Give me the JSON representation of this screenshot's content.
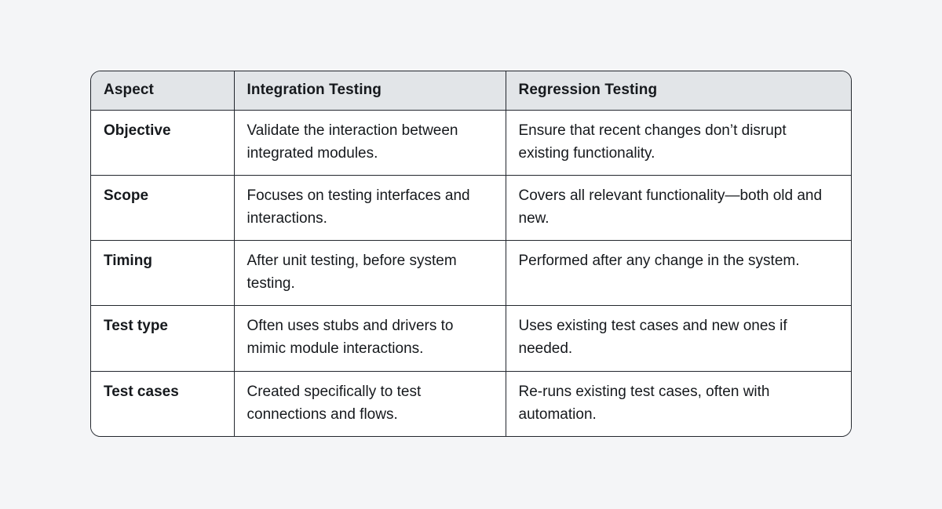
{
  "page": {
    "background_color": "#f4f5f7",
    "text_color": "#16191d"
  },
  "table": {
    "header_bg": "#e2e5e8",
    "body_bg": "#ffffff",
    "border_color": "#23272e",
    "columns": {
      "aspect": "Aspect",
      "integration": "Integration Testing",
      "regression": "Regression Testing"
    },
    "rows": [
      {
        "aspect": "Objective",
        "integration": "Validate the interaction between integrated modules.",
        "regression": "Ensure that recent changes don’t disrupt existing functionality."
      },
      {
        "aspect": "Scope",
        "integration": "Focuses on testing interfaces and interactions.",
        "regression": "Covers all relevant functionality—both old and new."
      },
      {
        "aspect": "Timing",
        "integration": "After unit testing, before system testing.",
        "regression": "Performed after any change in the system."
      },
      {
        "aspect": "Test type",
        "integration": "Often uses stubs and drivers to mimic module interactions.",
        "regression": "Uses existing test cases and new ones if needed."
      },
      {
        "aspect": "Test cases",
        "integration": "Created specifically to test connections and flows.",
        "regression": "Re-runs existing test cases, often with automation."
      }
    ]
  }
}
